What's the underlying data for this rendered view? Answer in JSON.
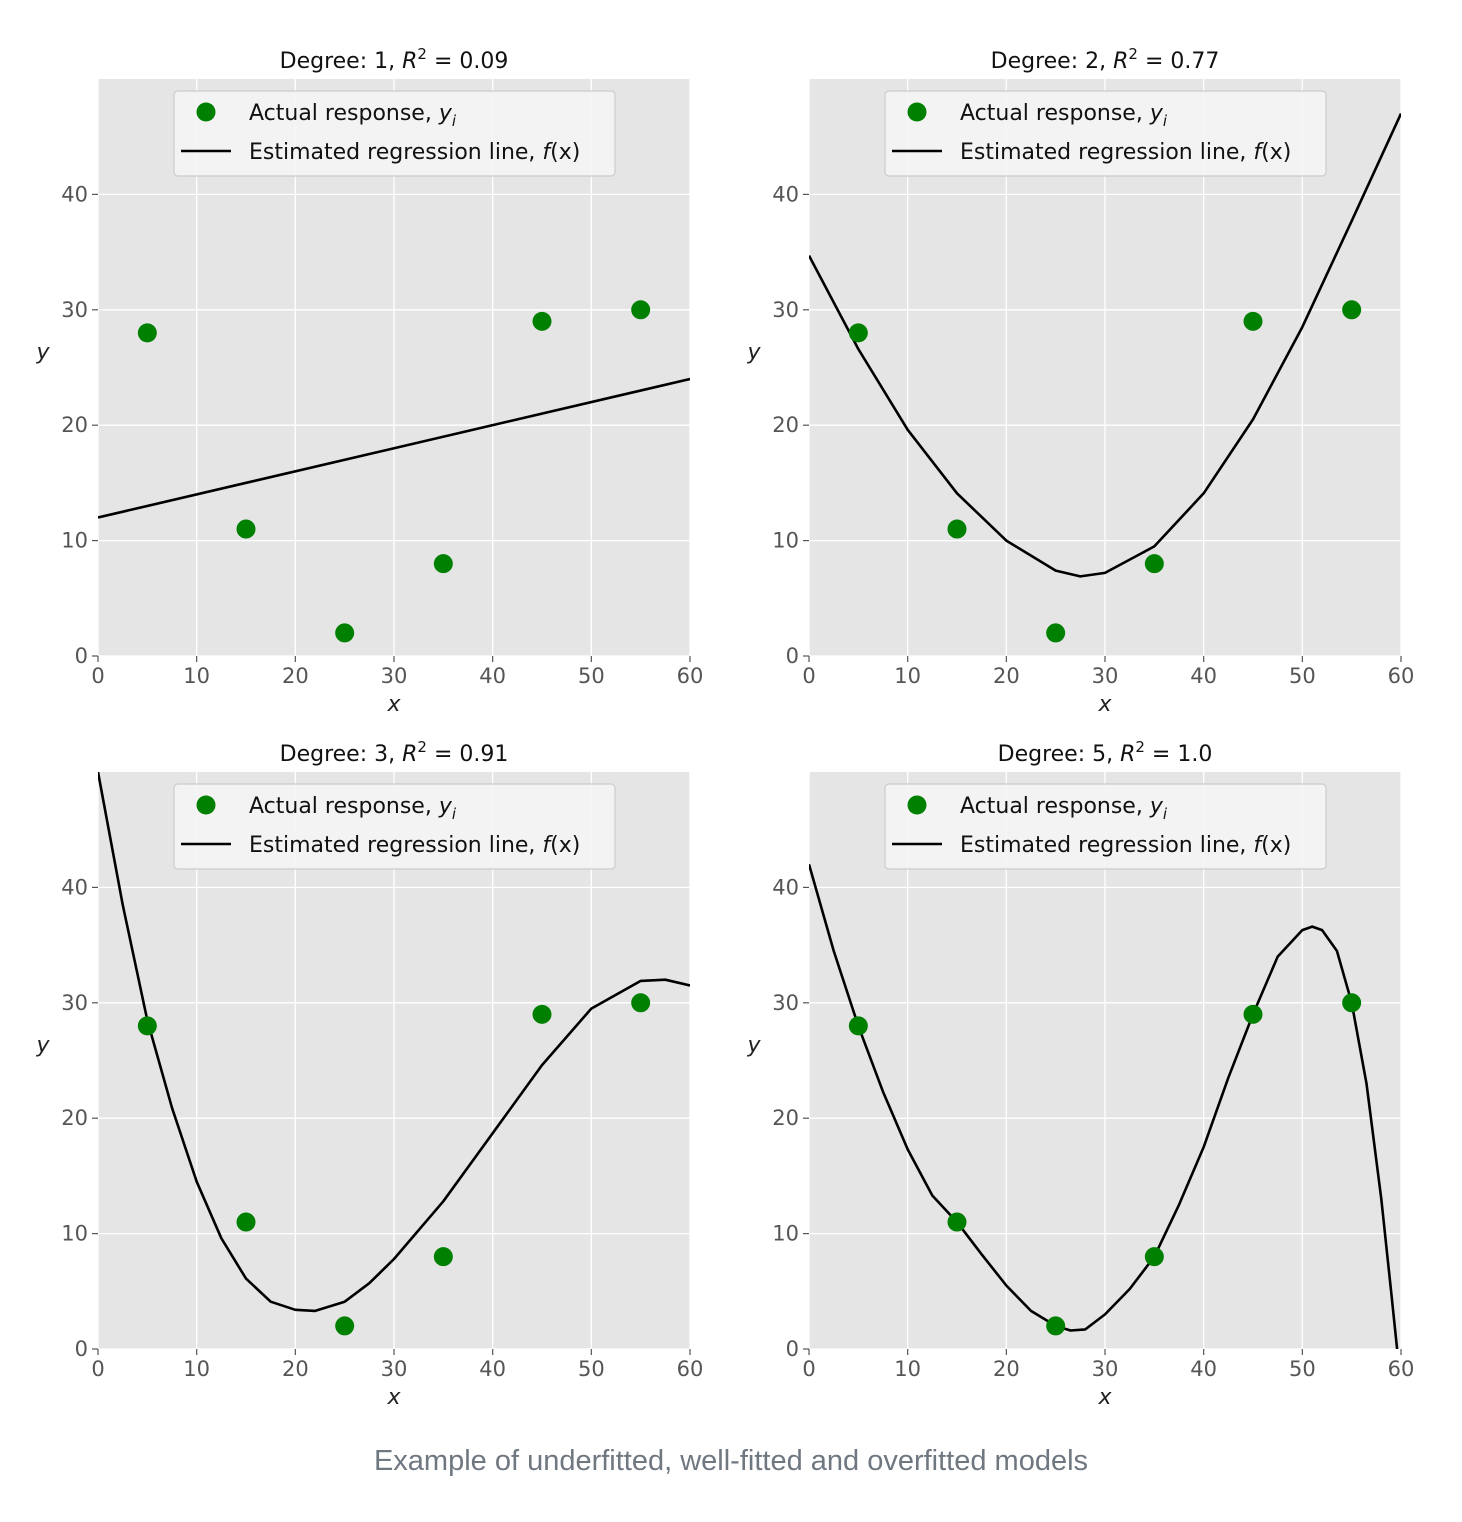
{
  "caption": "Example of underfitted, well-fitted and overfitted models",
  "colors": {
    "points": "#008000",
    "line": "#000000",
    "panel_bg": "#e5e5e5",
    "grid": "#ffffff"
  },
  "chart_data": [
    {
      "type": "scatter",
      "title": "Degree: 1, R² = 0.09",
      "title_prefix": "Degree: 1, ",
      "title_r": "R",
      "title_sup": "2",
      "title_value": " = 0.09",
      "xlabel": "x",
      "ylabel": "y",
      "xlim": [
        0,
        60
      ],
      "ylim": [
        0,
        50
      ],
      "xticks": [
        0,
        10,
        20,
        30,
        40,
        50,
        60
      ],
      "yticks": [
        0,
        10,
        20,
        30,
        40
      ],
      "grid": true,
      "legend_position": "top-center",
      "legend": [
        "Actual response, yᵢ",
        "Estimated regression line, f(x)"
      ],
      "legend_actual_prefix": "Actual response, ",
      "legend_actual_var": "y",
      "legend_actual_sub": "i",
      "legend_line_prefix": "Estimated regression line, ",
      "legend_line_fx": "f",
      "legend_line_arg": "(x)",
      "points": {
        "name": "Actual response",
        "x": [
          5,
          15,
          25,
          35,
          45,
          55
        ],
        "y": [
          28,
          11,
          2,
          8,
          29,
          30
        ]
      },
      "fit": {
        "name": "Estimated regression line",
        "degree": 1,
        "x": [
          0,
          60
        ],
        "y": [
          12.0,
          24.0
        ]
      }
    },
    {
      "type": "scatter",
      "title": "Degree: 2, R² = 0.77",
      "title_prefix": "Degree: 2, ",
      "title_r": "R",
      "title_sup": "2",
      "title_value": " = 0.77",
      "xlabel": "x",
      "ylabel": "y",
      "xlim": [
        0,
        60
      ],
      "ylim": [
        0,
        50
      ],
      "xticks": [
        0,
        10,
        20,
        30,
        40,
        50,
        60
      ],
      "yticks": [
        0,
        10,
        20,
        30,
        40
      ],
      "grid": true,
      "legend_position": "top-center",
      "legend": [
        "Actual response, yᵢ",
        "Estimated regression line, f(x)"
      ],
      "legend_actual_prefix": "Actual response, ",
      "legend_actual_var": "y",
      "legend_actual_sub": "i",
      "legend_line_prefix": "Estimated regression line, ",
      "legend_line_fx": "f",
      "legend_line_arg": "(x)",
      "points": {
        "name": "Actual response",
        "x": [
          5,
          15,
          25,
          35,
          45,
          55
        ],
        "y": [
          28,
          11,
          2,
          8,
          29,
          30
        ]
      },
      "fit": {
        "name": "Estimated regression line",
        "degree": 2,
        "x": [
          0,
          5,
          10,
          15,
          20,
          25,
          27.5,
          30,
          35,
          40,
          45,
          50,
          55,
          60
        ],
        "y": [
          34.7,
          26.6,
          19.6,
          14.1,
          10.0,
          7.4,
          6.9,
          7.2,
          9.5,
          14.1,
          20.5,
          28.5,
          37.7,
          47.0
        ]
      }
    },
    {
      "type": "scatter",
      "title": "Degree: 3, R² = 0.91",
      "title_prefix": "Degree: 3, ",
      "title_r": "R",
      "title_sup": "2",
      "title_value": " = 0.91",
      "xlabel": "x",
      "ylabel": "y",
      "xlim": [
        0,
        60
      ],
      "ylim": [
        0,
        50
      ],
      "xticks": [
        0,
        10,
        20,
        30,
        40,
        50,
        60
      ],
      "yticks": [
        0,
        10,
        20,
        30,
        40
      ],
      "grid": true,
      "legend_position": "top-center",
      "legend": [
        "Actual response, yᵢ",
        "Estimated regression line, f(x)"
      ],
      "legend_actual_prefix": "Actual response, ",
      "legend_actual_var": "y",
      "legend_actual_sub": "i",
      "legend_line_prefix": "Estimated regression line, ",
      "legend_line_fx": "f",
      "legend_line_arg": "(x)",
      "points": {
        "name": "Actual response",
        "x": [
          5,
          15,
          25,
          35,
          45,
          55
        ],
        "y": [
          28,
          11,
          2,
          8,
          29,
          30
        ]
      },
      "fit": {
        "name": "Estimated regression line",
        "degree": 3,
        "x": [
          0,
          2.5,
          5,
          7.5,
          10,
          12.5,
          15,
          17.5,
          20,
          22,
          25,
          27.5,
          30,
          35,
          40,
          45,
          50,
          55,
          57.5,
          60
        ],
        "y": [
          50.0,
          38.5,
          28.5,
          20.9,
          14.5,
          9.6,
          6.1,
          4.1,
          3.4,
          3.3,
          4.1,
          5.7,
          7.8,
          12.8,
          18.7,
          24.6,
          29.5,
          31.9,
          32.0,
          31.5
        ]
      }
    },
    {
      "type": "scatter",
      "title": "Degree: 5, R² = 1.0",
      "title_prefix": "Degree: 5, ",
      "title_r": "R",
      "title_sup": "2",
      "title_value": " = 1.0",
      "xlabel": "x",
      "ylabel": "y",
      "xlim": [
        0,
        60
      ],
      "ylim": [
        0,
        50
      ],
      "xticks": [
        0,
        10,
        20,
        30,
        40,
        50,
        60
      ],
      "yticks": [
        0,
        10,
        20,
        30,
        40
      ],
      "grid": true,
      "legend_position": "top-center",
      "legend": [
        "Actual response, yᵢ",
        "Estimated regression line, f(x)"
      ],
      "legend_actual_prefix": "Actual response, ",
      "legend_actual_var": "y",
      "legend_actual_sub": "i",
      "legend_line_prefix": "Estimated regression line, ",
      "legend_line_fx": "f",
      "legend_line_arg": "(x)",
      "points": {
        "name": "Actual response",
        "x": [
          5,
          15,
          25,
          35,
          45,
          55
        ],
        "y": [
          28,
          11,
          2,
          8,
          29,
          30
        ]
      },
      "fit": {
        "name": "Estimated regression line",
        "degree": 5,
        "x": [
          0,
          2.5,
          5,
          7.5,
          10,
          12.5,
          15,
          17.5,
          20,
          22.5,
          25,
          26.5,
          28,
          30,
          32.5,
          35,
          37.5,
          40,
          42.5,
          45,
          47.5,
          50,
          51,
          52,
          53.5,
          55,
          56.5,
          58,
          59,
          59.6
        ],
        "y": [
          42.0,
          34.5,
          28.0,
          22.3,
          17.3,
          13.3,
          11.0,
          8.2,
          5.5,
          3.3,
          2.0,
          1.6,
          1.7,
          3.0,
          5.2,
          8.0,
          12.5,
          17.5,
          23.5,
          29.0,
          34.0,
          36.3,
          36.6,
          36.3,
          34.5,
          30.0,
          23.0,
          13.0,
          5.0,
          0.0
        ]
      }
    }
  ]
}
